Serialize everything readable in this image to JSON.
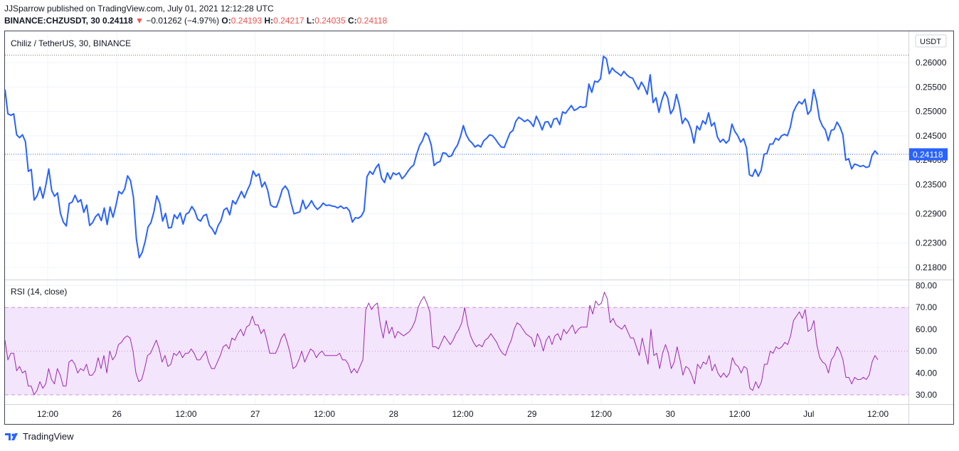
{
  "header": {
    "publish_line": "JJSparrow published on TradingView.com, July 01, 2021 12:12:28 UTC",
    "symbol": "BINANCE:CHZUSDT, 30",
    "last": "0.24118",
    "arrow": "▼",
    "change": "−0.01262 (−4.97%)",
    "o_label": "O:",
    "o_value": "0.24193",
    "h_label": "H:",
    "h_value": "0.24217",
    "l_label": "L:",
    "l_value": "0.24035",
    "c_label": "C:",
    "c_value": "0.24118"
  },
  "footer": {
    "brand": "TradingView"
  },
  "colors": {
    "price_line": "#2962ff",
    "rsi_line": "#9c27b0",
    "rsi_band": "#f3e5fb",
    "last_label_bg": "#2962ff"
  },
  "chart_data": [
    {
      "type": "line",
      "title": "Chiliz / TetherUS, 30, BINANCE",
      "currency_label": "USDT",
      "last_price_label": "0.24118",
      "ylim": [
        0.2155,
        0.2645
      ],
      "yticks": [
        "0.26000",
        "0.25500",
        "0.25000",
        "0.24500",
        "0.24000",
        "0.23500",
        "0.22900",
        "0.22300",
        "0.21800"
      ],
      "xticks": [
        "12:00",
        "26",
        "12:00",
        "27",
        "12:00",
        "28",
        "12:00",
        "29",
        "12:00",
        "30",
        "12:00",
        "Jul",
        "12:00"
      ],
      "series": [
        {
          "values": [
            0.2545,
            0.2495,
            0.2492,
            0.2495,
            0.2452,
            0.2446,
            0.2452,
            0.2438,
            0.2377,
            0.2381,
            0.2318,
            0.2327,
            0.2345,
            0.2322,
            0.2349,
            0.2382,
            0.2338,
            0.2326,
            0.2333,
            0.2291,
            0.2273,
            0.2265,
            0.2311,
            0.2314,
            0.2328,
            0.2314,
            0.2319,
            0.2293,
            0.2308,
            0.2266,
            0.2272,
            0.2284,
            0.229,
            0.2276,
            0.2302,
            0.2268,
            0.2304,
            0.2283,
            0.2307,
            0.2336,
            0.2331,
            0.2341,
            0.2368,
            0.2358,
            0.2324,
            0.2239,
            0.22,
            0.2211,
            0.2233,
            0.2263,
            0.2272,
            0.2294,
            0.2327,
            0.2312,
            0.2275,
            0.2291,
            0.2261,
            0.2262,
            0.2288,
            0.228,
            0.2292,
            0.2269,
            0.2289,
            0.2293,
            0.2305,
            0.2296,
            0.2279,
            0.2275,
            0.2286,
            0.2289,
            0.2266,
            0.2259,
            0.2248,
            0.2266,
            0.2276,
            0.2298,
            0.2302,
            0.2288,
            0.2317,
            0.231,
            0.2323,
            0.2336,
            0.2323,
            0.2338,
            0.2351,
            0.2378,
            0.2367,
            0.2372,
            0.2345,
            0.2355,
            0.2338,
            0.2308,
            0.2304,
            0.2304,
            0.232,
            0.234,
            0.2347,
            0.2338,
            0.2312,
            0.229,
            0.2292,
            0.2294,
            0.2318,
            0.23,
            0.2307,
            0.2317,
            0.2306,
            0.2299,
            0.2304,
            0.2312,
            0.2307,
            0.2308,
            0.2306,
            0.2305,
            0.2302,
            0.2306,
            0.2301,
            0.2303,
            0.2296,
            0.2273,
            0.2282,
            0.2281,
            0.2285,
            0.2296,
            0.2366,
            0.2377,
            0.2371,
            0.2384,
            0.2392,
            0.2363,
            0.2354,
            0.2374,
            0.2361,
            0.2374,
            0.237,
            0.2374,
            0.2362,
            0.2368,
            0.2377,
            0.2385,
            0.239,
            0.2412,
            0.243,
            0.244,
            0.2456,
            0.245,
            0.2431,
            0.2389,
            0.2395,
            0.2397,
            0.2415,
            0.2414,
            0.2407,
            0.2409,
            0.2422,
            0.2431,
            0.2448,
            0.2471,
            0.2452,
            0.2441,
            0.2435,
            0.2427,
            0.2431,
            0.2427,
            0.244,
            0.2445,
            0.2452,
            0.245,
            0.2443,
            0.2434,
            0.2427,
            0.2426,
            0.2441,
            0.2456,
            0.2461,
            0.248,
            0.2488,
            0.2484,
            0.2479,
            0.2483,
            0.2478,
            0.2469,
            0.249,
            0.2478,
            0.2462,
            0.2478,
            0.2479,
            0.2467,
            0.2484,
            0.2486,
            0.2473,
            0.2499,
            0.2496,
            0.2504,
            0.2512,
            0.2502,
            0.2505,
            0.251,
            0.2508,
            0.251,
            0.2556,
            0.2539,
            0.2562,
            0.256,
            0.2567,
            0.2613,
            0.2608,
            0.2577,
            0.2589,
            0.2582,
            0.2578,
            0.2573,
            0.2582,
            0.2575,
            0.257,
            0.2568,
            0.2556,
            0.2545,
            0.256,
            0.255,
            0.2535,
            0.2575,
            0.2518,
            0.2528,
            0.2498,
            0.2523,
            0.254,
            0.2528,
            0.2495,
            0.2505,
            0.2535,
            0.2512,
            0.2475,
            0.2486,
            0.2479,
            0.2463,
            0.2435,
            0.247,
            0.2462,
            0.2481,
            0.2474,
            0.2497,
            0.247,
            0.2477,
            0.2448,
            0.2437,
            0.2443,
            0.2435,
            0.2441,
            0.2474,
            0.2459,
            0.245,
            0.2437,
            0.2444,
            0.2425,
            0.237,
            0.2367,
            0.2381,
            0.2367,
            0.2379,
            0.2412,
            0.2414,
            0.2433,
            0.2433,
            0.2445,
            0.2441,
            0.245,
            0.2453,
            0.245,
            0.2468,
            0.2498,
            0.2511,
            0.252,
            0.2515,
            0.2525,
            0.2494,
            0.2502,
            0.2545,
            0.2521,
            0.2484,
            0.247,
            0.2462,
            0.244,
            0.2461,
            0.2463,
            0.2478,
            0.2468,
            0.2452,
            0.24,
            0.2403,
            0.2382,
            0.2392,
            0.239,
            0.2387,
            0.2389,
            0.2385,
            0.2387,
            0.241,
            0.2419,
            0.2412
          ]
        }
      ]
    },
    {
      "type": "line",
      "title": "RSI (14, close)",
      "ylim": [
        27,
        83
      ],
      "yticks": [
        "80.00",
        "70.00",
        "60.00",
        "50.00",
        "40.00",
        "30.00"
      ],
      "band": [
        30,
        70
      ],
      "midline": 50,
      "series": [
        {
          "values": [
            55,
            46,
            49,
            49,
            41,
            43,
            40,
            41,
            34,
            34,
            30,
            32,
            36,
            33,
            35,
            42,
            37,
            35,
            42,
            39,
            34,
            34,
            45,
            46,
            44,
            40,
            42,
            41,
            44,
            39,
            39,
            41,
            47,
            42,
            48,
            40,
            50,
            46,
            48,
            53,
            54,
            56,
            57,
            56,
            50,
            40,
            36,
            37,
            42,
            48,
            49,
            52,
            55,
            51,
            45,
            48,
            43,
            44,
            49,
            48,
            50,
            47,
            49,
            49,
            51,
            49,
            46,
            46,
            48,
            50,
            45,
            42,
            42,
            45,
            48,
            52,
            53,
            51,
            56,
            55,
            58,
            60,
            57,
            61,
            62,
            66,
            62,
            62,
            58,
            60,
            55,
            49,
            49,
            49,
            52,
            56,
            58,
            54,
            49,
            42,
            43,
            46,
            50,
            45,
            48,
            51,
            50,
            47,
            49,
            50,
            48,
            48,
            48,
            48,
            48,
            49,
            46,
            46,
            44,
            40,
            42,
            40,
            43,
            46,
            69,
            72,
            69,
            71,
            72,
            62,
            56,
            64,
            58,
            61,
            56,
            59,
            58,
            57,
            58,
            59,
            61,
            64,
            70,
            73,
            75,
            72,
            68,
            52,
            52,
            51,
            54,
            57,
            55,
            53,
            55,
            58,
            60,
            63,
            70,
            62,
            57,
            54,
            52,
            53,
            52,
            55,
            56,
            58,
            56,
            54,
            51,
            49,
            48,
            52,
            55,
            60,
            63,
            62,
            60,
            58,
            57,
            56,
            52,
            58,
            55,
            50,
            55,
            57,
            53,
            57,
            58,
            55,
            60,
            58,
            60,
            62,
            58,
            60,
            61,
            61,
            61,
            71,
            67,
            73,
            71,
            72,
            77,
            74,
            63,
            65,
            62,
            61,
            60,
            62,
            59,
            56,
            56,
            52,
            48,
            56,
            50,
            44,
            60,
            48,
            49,
            42,
            49,
            53,
            49,
            42,
            45,
            52,
            46,
            39,
            43,
            42,
            39,
            35,
            44,
            42,
            45,
            44,
            48,
            41,
            44,
            40,
            38,
            40,
            38,
            40,
            47,
            44,
            43,
            40,
            43,
            42,
            33,
            32,
            36,
            33,
            36,
            44,
            44,
            50,
            49,
            52,
            51,
            52,
            54,
            53,
            57,
            64,
            66,
            68,
            65,
            69,
            59,
            60,
            64,
            53,
            47,
            45,
            44,
            40,
            46,
            48,
            52,
            50,
            46,
            38,
            38,
            35,
            38,
            37,
            37,
            38,
            37,
            39,
            45,
            48,
            46
          ]
        }
      ]
    }
  ]
}
